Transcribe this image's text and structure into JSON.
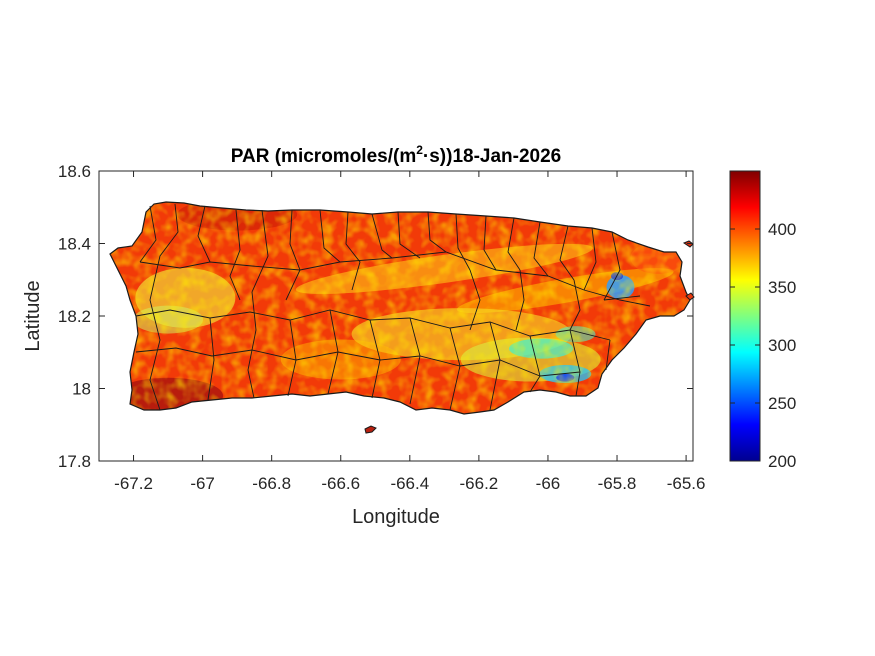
{
  "chart_data": {
    "type": "heatmap",
    "title": {
      "prefix": "PAR (micromoles/(m",
      "superscript": "2",
      "suffix": "·s))18-Jan-2026"
    },
    "xlabel": "Longitude",
    "ylabel": "Latitude",
    "xlim": [
      -67.3,
      -65.58
    ],
    "ylim": [
      17.8,
      18.6
    ],
    "xticks": [
      -67.2,
      -67,
      -66.8,
      -66.6,
      -66.4,
      -66.2,
      -66,
      -65.8,
      -65.6
    ],
    "xtick_labels": [
      "-67.2",
      "-67",
      "-66.8",
      "-66.6",
      "-66.4",
      "-66.2",
      "-66",
      "-65.8",
      "-65.6"
    ],
    "yticks": [
      17.8,
      18,
      18.2,
      18.4,
      18.6
    ],
    "ytick_labels": [
      "17.8",
      "18",
      "18.2",
      "18.4",
      "18.6"
    ],
    "colorbar": {
      "colormap": "jet",
      "clim": [
        200,
        450
      ],
      "ticks": [
        200,
        250,
        300,
        350,
        400
      ],
      "tick_labels": [
        "200",
        "250",
        "300",
        "350",
        "400"
      ]
    },
    "grid": false,
    "region": "Puerto Rico",
    "value_range_observed": [
      240,
      450
    ],
    "low_value_areas": [
      {
        "lon": -65.79,
        "lat": 18.28,
        "value": 260
      },
      {
        "lon": -65.95,
        "lat": 18.04,
        "value": 255
      },
      {
        "lon": -66.05,
        "lat": 18.1,
        "value": 295
      }
    ]
  }
}
